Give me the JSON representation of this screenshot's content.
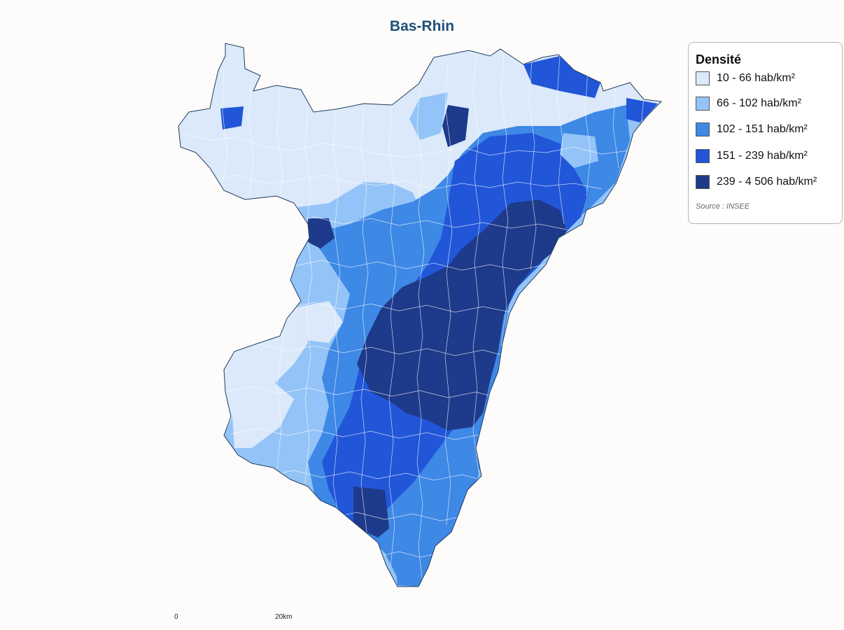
{
  "title": "Bas-Rhin",
  "legend": {
    "title": "Densité",
    "classes": [
      {
        "label": "10 - 66 hab/km²",
        "color": "#dbe9fb"
      },
      {
        "label": "66 - 102 hab/km²",
        "color": "#94c4f7"
      },
      {
        "label": "102 - 151 hab/km²",
        "color": "#3e88e6"
      },
      {
        "label": "151 - 239 hab/km²",
        "color": "#2156d9"
      },
      {
        "label": "239 - 4 506 hab/km²",
        "color": "#1e3a8a"
      }
    ],
    "source": "Source : INSEE"
  },
  "scale_bar": {
    "start_label": "0",
    "end_label": "20km"
  },
  "colors": {
    "title": "#1f4e79",
    "outline": "#1e3a5f",
    "background": "#fdfcfb"
  }
}
